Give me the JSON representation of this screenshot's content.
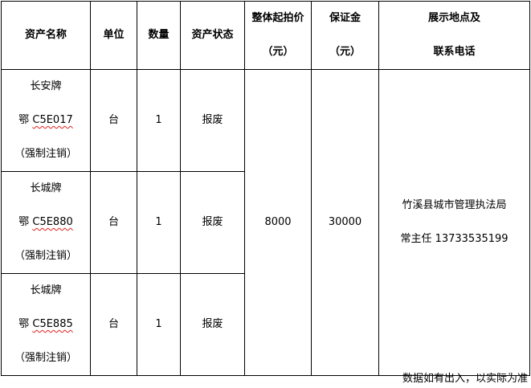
{
  "headers": {
    "name": "资产名称",
    "unit": "单位",
    "qty": "数量",
    "status": "资产状态",
    "price_line1": "整体起拍价",
    "price_line2": "（元）",
    "deposit_line1": "保证金",
    "deposit_line2": "（元）",
    "location_line1": "展示地点及",
    "location_line2": "联系电话"
  },
  "rows": [
    {
      "brand": "长安牌",
      "plate_prefix": "鄂 ",
      "plate": "C5E017",
      "note": "（强制注销）",
      "unit": "台",
      "qty": "1",
      "status": "报废"
    },
    {
      "brand": "长城牌",
      "plate_prefix": "鄂 ",
      "plate": "C5E880",
      "note": "（强制注销）",
      "unit": "台",
      "qty": "1",
      "status": "报废"
    },
    {
      "brand": "长城牌",
      "plate_prefix": "鄂 ",
      "plate": "C5E885",
      "note": "（强制注销）",
      "unit": "台",
      "qty": "1",
      "status": "报废"
    }
  ],
  "price": "8000",
  "deposit": "30000",
  "location": "竹溪县城市管理执法局",
  "contact": "常主任 13733535199",
  "footnote": "数据如有出入，以实际为准"
}
